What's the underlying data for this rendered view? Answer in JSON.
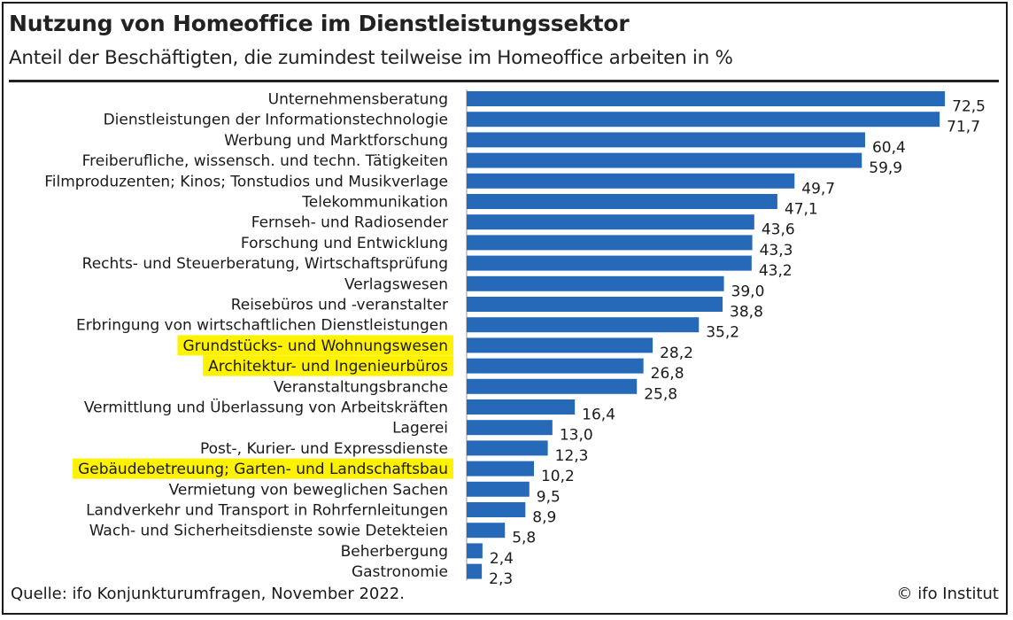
{
  "chart_data": {
    "type": "bar",
    "orientation": "horizontal",
    "title": "Nutzung von Homeoffice im Dienstleistungssektor",
    "subtitle": "Anteil der Beschäftigten, die zumindest teilweise im Homeoffice arbeiten in %",
    "categories": [
      "Unternehmensberatung",
      "Dienstleistungen der Informationstechnologie",
      "Werbung und Marktforschung",
      "Freiberufliche, wissensch. und techn. Tätigkeiten",
      "Filmproduzenten; Kinos; Tonstudios und Musikverlage",
      "Telekommunikation",
      "Fernseh- und Radiosender",
      "Forschung und Entwicklung",
      "Rechts- und Steuerberatung, Wirtschaftsprüfung",
      "Verlagswesen",
      "Reisebüros und -veranstalter",
      "Erbringung von wirtschaftlichen Dienstleistungen",
      "Grundstücks- und Wohnungswesen",
      "Architektur- und Ingenieurbüros",
      "Veranstaltungsbranche",
      "Vermittlung und Überlassung von Arbeitskräften",
      "Lagerei",
      "Post-, Kurier- und Expressdienste",
      "Gebäudebetreuung; Garten- und Landschaftsbau",
      "Vermietung von beweglichen Sachen",
      "Landverkehr und Transport in Rohrfernleitungen",
      "Wach- und Sicherheitsdienste sowie Detekteien",
      "Beherbergung",
      "Gastronomie"
    ],
    "values": [
      72.5,
      71.7,
      60.4,
      59.9,
      49.7,
      47.1,
      43.6,
      43.3,
      43.2,
      39.0,
      38.8,
      35.2,
      28.2,
      26.8,
      25.8,
      16.4,
      13.0,
      12.3,
      10.2,
      9.5,
      8.9,
      5.8,
      2.4,
      2.3
    ],
    "value_labels": [
      "72,5",
      "71,7",
      "60,4",
      "59,9",
      "49,7",
      "47,1",
      "43,6",
      "43,3",
      "43,2",
      "39,0",
      "38,8",
      "35,2",
      "28,2",
      "26,8",
      "25,8",
      "16,4",
      "13,0",
      "12,3",
      "10,2",
      "9,5",
      "8,9",
      "5,8",
      "2,4",
      "2,3"
    ],
    "highlighted_categories": [
      "Grundstücks- und Wohnungswesen",
      "Architektur- und Ingenieurbüros",
      "Gebäudebetreuung; Garten- und Landschaftsbau"
    ],
    "xlim": [
      0,
      75
    ],
    "grid": false,
    "bar_color": "#2569b8",
    "highlight_color": "#fff200"
  },
  "footer": {
    "source": "Quelle: ifo Konjunkturumfragen, November 2022.",
    "copyright": "© ifo Institut"
  }
}
